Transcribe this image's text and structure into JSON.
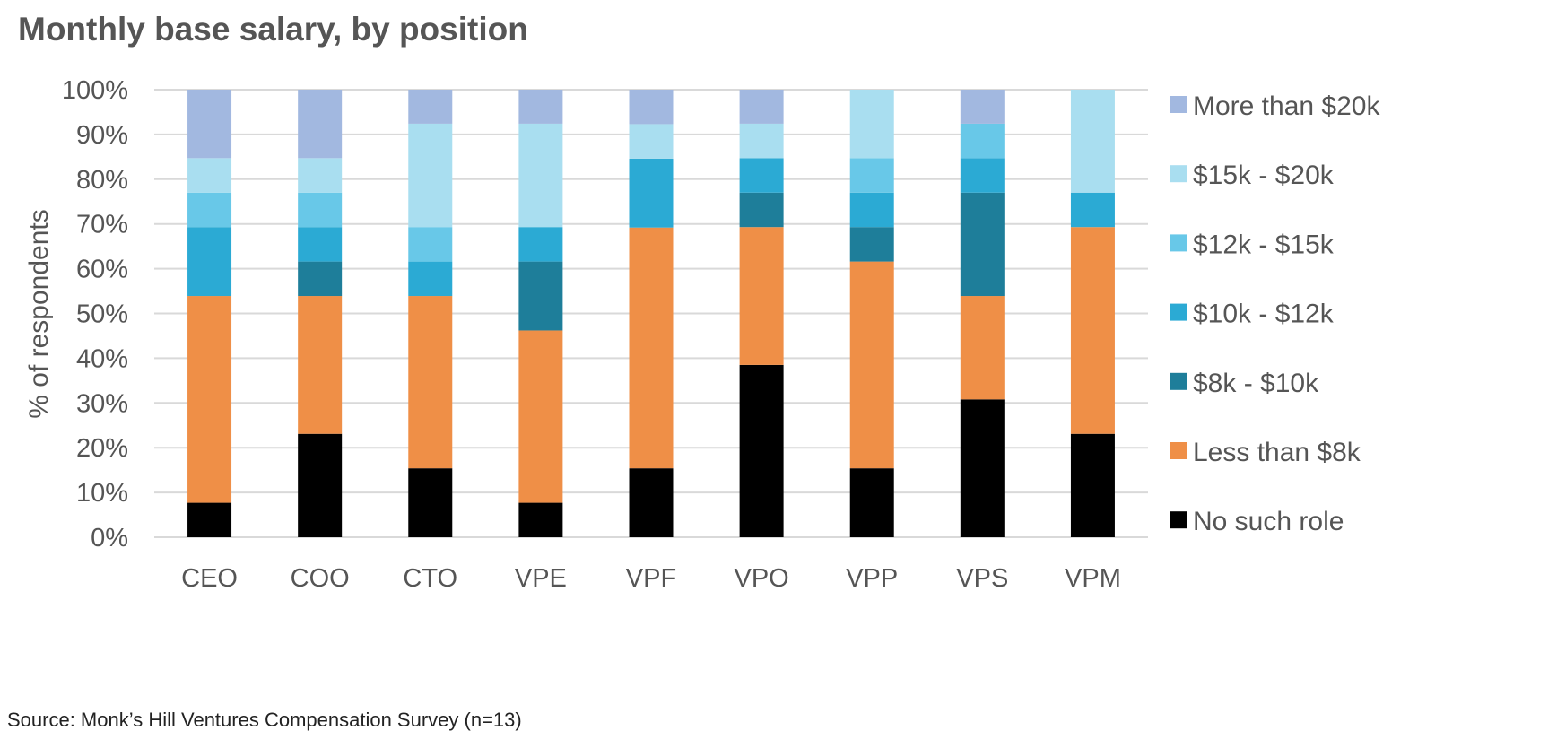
{
  "chart_data": {
    "type": "bar",
    "stacked": true,
    "title": "Monthly base salary, by position",
    "xlabel": "",
    "ylabel": "% of respondents",
    "ylim": [
      0,
      100
    ],
    "yticks": [
      "0%",
      "10%",
      "20%",
      "30%",
      "40%",
      "50%",
      "60%",
      "70%",
      "80%",
      "90%",
      "100%"
    ],
    "grid": true,
    "legend_position": "right",
    "categories": [
      "CEO",
      "COO",
      "CTO",
      "VPE",
      "VPF",
      "VPO",
      "VPP",
      "VPS",
      "VPM"
    ],
    "series": [
      {
        "name": "No such role",
        "color": "#000000",
        "values": [
          7.7,
          23.1,
          15.4,
          7.7,
          15.4,
          38.5,
          15.4,
          30.8,
          23.1
        ]
      },
      {
        "name": "Less than $8k",
        "color": "#EF8F47",
        "values": [
          46.2,
          30.8,
          38.5,
          38.5,
          53.8,
          30.8,
          46.2,
          23.1,
          46.2
        ]
      },
      {
        "name": "$8k - $10k",
        "color": "#1E7E9A",
        "values": [
          0,
          7.7,
          0,
          15.4,
          0,
          7.7,
          7.7,
          23.1,
          0
        ]
      },
      {
        "name": "$10k - $12k",
        "color": "#2BAAD4",
        "values": [
          15.4,
          7.7,
          7.7,
          7.7,
          15.4,
          7.7,
          7.7,
          7.7,
          7.7
        ]
      },
      {
        "name": "$12k - $15k",
        "color": "#68C8E8",
        "values": [
          7.7,
          7.7,
          7.7,
          0,
          0,
          0,
          7.7,
          7.7,
          0
        ]
      },
      {
        "name": "$15k - $20k",
        "color": "#A9DEF0",
        "values": [
          7.7,
          7.7,
          23.1,
          23.1,
          7.7,
          7.7,
          15.4,
          0,
          23.0
        ]
      },
      {
        "name": "More than $20k",
        "color": "#A2B8E0",
        "values": [
          15.3,
          15.3,
          7.6,
          7.6,
          7.7,
          7.6,
          0,
          7.6,
          0
        ]
      }
    ],
    "source": "Source: Monk’s Hill Ventures Compensation Survey (n=13)"
  },
  "style": {
    "grid_color": "#D9D9D9",
    "text_color": "#555555"
  }
}
